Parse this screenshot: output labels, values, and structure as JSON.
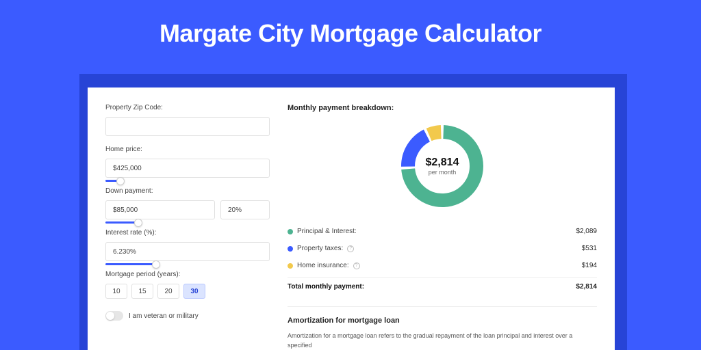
{
  "page": {
    "title": "Margate City Mortgage Calculator",
    "background_color": "#3b5bff",
    "shadow_color": "#2744d6",
    "card_background": "#ffffff"
  },
  "form": {
    "zip": {
      "label": "Property Zip Code:",
      "value": ""
    },
    "home_price": {
      "label": "Home price:",
      "value": "$425,000",
      "slider_pct": 9
    },
    "down_payment": {
      "label": "Down payment:",
      "amount": "$85,000",
      "percent": "20%",
      "slider_pct": 20
    },
    "interest_rate": {
      "label": "Interest rate (%):",
      "value": "6.230%",
      "slider_pct": 31
    },
    "period": {
      "label": "Mortgage period (years):",
      "options": [
        "10",
        "15",
        "20",
        "30"
      ],
      "selected": "30"
    },
    "veteran": {
      "label": "I am veteran or military",
      "checked": false
    }
  },
  "breakdown": {
    "title": "Monthly payment breakdown:",
    "donut": {
      "amount": "$2,814",
      "sub": "per month",
      "slices": [
        {
          "key": "pi",
          "value": 2089,
          "color": "#4db391"
        },
        {
          "key": "tax",
          "value": 531,
          "color": "#3b5bff"
        },
        {
          "key": "ins",
          "value": 194,
          "color": "#f2c94c"
        }
      ],
      "stroke_width": 20
    },
    "rows": [
      {
        "dot": "#4db391",
        "label": "Principal & Interest:",
        "info": false,
        "value": "$2,089"
      },
      {
        "dot": "#3b5bff",
        "label": "Property taxes:",
        "info": true,
        "value": "$531"
      },
      {
        "dot": "#f2c94c",
        "label": "Home insurance:",
        "info": true,
        "value": "$194"
      }
    ],
    "total": {
      "label": "Total monthly payment:",
      "value": "$2,814"
    }
  },
  "amort": {
    "title": "Amortization for mortgage loan",
    "text": "Amortization for a mortgage loan refers to the gradual repayment of the loan principal and interest over a specified"
  }
}
